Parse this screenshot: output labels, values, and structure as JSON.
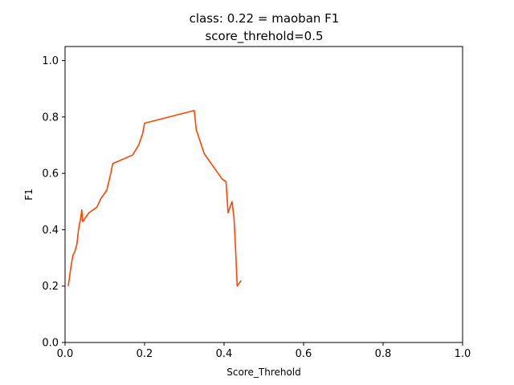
{
  "chart_data": {
    "type": "line",
    "title_line1": "class: 0.22 = maoban F1",
    "title_line2": "score_threhold=0.5",
    "xlabel": "Score_Threhold",
    "ylabel": "F1",
    "xlim": [
      0.0,
      1.0
    ],
    "ylim": [
      0.0,
      1.05
    ],
    "xticks": [
      "0.0",
      "0.2",
      "0.4",
      "0.6",
      "0.8",
      "1.0"
    ],
    "yticks": [
      "0.0",
      "0.2",
      "0.4",
      "0.6",
      "0.8",
      "1.0"
    ],
    "grid": false,
    "line_color": "#ff4500",
    "series": [
      {
        "x": [
          0.008,
          0.012,
          0.016,
          0.02,
          0.024,
          0.028,
          0.03,
          0.033,
          0.036,
          0.038,
          0.04,
          0.042,
          0.044,
          0.046,
          0.05,
          0.055,
          0.06,
          0.08,
          0.09,
          0.1,
          0.105,
          0.11,
          0.115,
          0.12,
          0.17,
          0.185,
          0.195,
          0.2,
          0.325,
          0.33,
          0.35,
          0.395,
          0.405,
          0.41,
          0.42,
          0.425,
          0.428,
          0.433,
          0.443
        ],
        "y": [
          0.2,
          0.24,
          0.28,
          0.31,
          0.32,
          0.34,
          0.35,
          0.39,
          0.42,
          0.43,
          0.45,
          0.47,
          0.43,
          0.43,
          0.44,
          0.45,
          0.46,
          0.48,
          0.51,
          0.53,
          0.54,
          0.57,
          0.6,
          0.635,
          0.665,
          0.7,
          0.74,
          0.778,
          0.823,
          0.755,
          0.67,
          0.58,
          0.57,
          0.46,
          0.5,
          0.44,
          0.36,
          0.2,
          0.22
        ]
      }
    ]
  }
}
